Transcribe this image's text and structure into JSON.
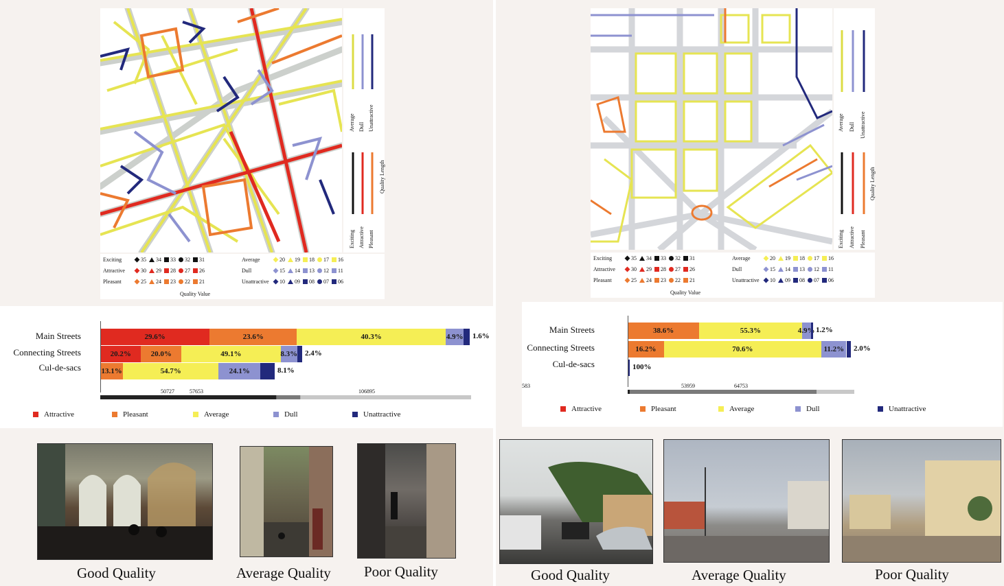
{
  "colors": {
    "attractive": "#e02a20",
    "pleasant": "#ec7a30",
    "average": "#f5ee55",
    "dull": "#8d92d0",
    "unattractive": "#22297c",
    "exciting": "#111111"
  },
  "map_legend": {
    "vertical_labels": [
      "Average",
      "Dull",
      "Unattractive",
      "Exciting",
      "Attractive",
      "Pleasant",
      "Quality Length"
    ],
    "rows": [
      {
        "name": "Exciting",
        "values": [
          "35",
          "34",
          "33",
          "32",
          "31"
        ]
      },
      {
        "name": "Attractive",
        "values": [
          "30",
          "29",
          "28",
          "27",
          "26"
        ]
      },
      {
        "name": "Pleasant",
        "values": [
          "25",
          "24",
          "23",
          "22",
          "21"
        ]
      },
      {
        "name": "Average",
        "values": [
          "20",
          "19",
          "18",
          "17",
          "16"
        ]
      },
      {
        "name": "Dull",
        "values": [
          "15",
          "14",
          "13",
          "12",
          "11"
        ]
      },
      {
        "name": "Unattractive",
        "values": [
          "10",
          "09",
          "08",
          "07",
          "06"
        ]
      }
    ],
    "title": "Quality Value"
  },
  "left": {
    "categories": [
      "Main Streets",
      "Connecting Streets",
      "Cul-de-sacs"
    ],
    "scale_labels": [
      "50727",
      "57653",
      "106895"
    ],
    "legend": [
      "Attractive",
      "Pleasant",
      "Average",
      "Dull",
      "Unattractive"
    ],
    "captions": [
      "Good Quality",
      "Average Quality",
      "Poor Quality"
    ]
  },
  "right": {
    "categories": [
      "Main Streets",
      "Connecting Streets",
      "Cul-de-sacs"
    ],
    "scale_labels": [
      "583",
      "53959",
      "64753"
    ],
    "legend": [
      "Attractive",
      "Pleasant",
      "Average",
      "Dull",
      "Unattractive"
    ],
    "captions": [
      "Good Quality",
      "Average Quality",
      "Poor Quality"
    ]
  },
  "chart_data": [
    {
      "type": "bar",
      "orientation": "horizontal-stacked",
      "categories": [
        "Main Streets",
        "Connecting Streets",
        "Cul-de-sacs"
      ],
      "series": [
        {
          "name": "Attractive",
          "values": [
            29.6,
            20.2,
            0
          ]
        },
        {
          "name": "Pleasant",
          "values": [
            23.6,
            20.0,
            13.1
          ]
        },
        {
          "name": "Average",
          "values": [
            40.3,
            49.1,
            54.7
          ]
        },
        {
          "name": "Dull",
          "values": [
            4.9,
            8.3,
            24.1
          ]
        },
        {
          "name": "Unattractive",
          "values": [
            1.6,
            2.4,
            8.1
          ]
        }
      ],
      "labels": [
        [
          "29.6%",
          "23.6%",
          "40.3%",
          "4.9%",
          "1.6%"
        ],
        [
          "20.2%",
          "20.0%",
          "49.1%",
          "8.3%",
          "2.4%"
        ],
        [
          "",
          "13.1%",
          "54.7%",
          "24.1%",
          "8.1%"
        ]
      ],
      "street_length_totals": [
        106895,
        57653,
        50727
      ],
      "legend": [
        "Attractive",
        "Pleasant",
        "Average",
        "Dull",
        "Unattractive"
      ]
    },
    {
      "type": "bar",
      "orientation": "horizontal-stacked",
      "categories": [
        "Main Streets",
        "Connecting Streets",
        "Cul-de-sacs"
      ],
      "series": [
        {
          "name": "Attractive",
          "values": [
            0,
            0,
            0
          ]
        },
        {
          "name": "Pleasant",
          "values": [
            38.6,
            16.2,
            0
          ]
        },
        {
          "name": "Average",
          "values": [
            55.3,
            70.6,
            0
          ]
        },
        {
          "name": "Dull",
          "values": [
            4.9,
            11.2,
            0
          ]
        },
        {
          "name": "Unattractive",
          "values": [
            1.2,
            2.0,
            100
          ]
        }
      ],
      "labels": [
        [
          "",
          "38.6%",
          "55.3%",
          "4.9%",
          "1.2%"
        ],
        [
          "",
          "16.2%",
          "70.6%",
          "11.2%",
          "2.0%"
        ],
        [
          "",
          "",
          "",
          "",
          "100%"
        ]
      ],
      "street_length_totals": [
        53959,
        64753,
        583
      ],
      "legend": [
        "Attractive",
        "Pleasant",
        "Average",
        "Dull",
        "Unattractive"
      ]
    }
  ]
}
